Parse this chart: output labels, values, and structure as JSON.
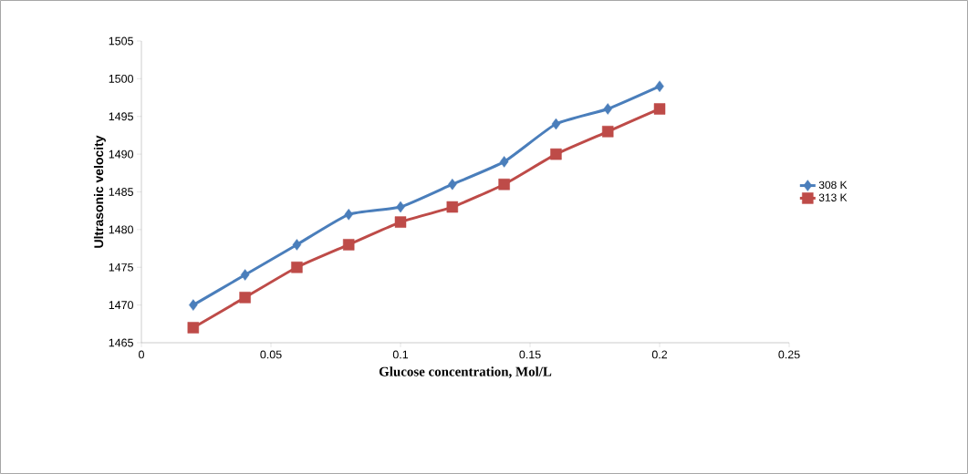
{
  "chart_data": {
    "type": "line",
    "xlabel": "Glucose concentration, Mol/L",
    "ylabel": "Ultrasonic velocity",
    "x": [
      0.02,
      0.04,
      0.06,
      0.08,
      0.1,
      0.12,
      0.14,
      0.16,
      0.18,
      0.2
    ],
    "series": [
      {
        "name": "308 K",
        "color": "#4a7ebb",
        "marker": "diamond",
        "values": [
          1470,
          1474,
          1478,
          1482,
          1483,
          1486,
          1489,
          1494,
          1496,
          1499
        ]
      },
      {
        "name": "313 K",
        "color": "#be4b48",
        "marker": "square",
        "values": [
          1467,
          1471,
          1475,
          1478,
          1481,
          1483,
          1486,
          1490,
          1493,
          1496
        ]
      }
    ],
    "xlim": [
      0,
      0.25
    ],
    "xticks": [
      0,
      0.05,
      0.1,
      0.15,
      0.2,
      0.25
    ],
    "ylim": [
      1465,
      1505
    ],
    "yticks": [
      1465,
      1470,
      1475,
      1480,
      1485,
      1490,
      1495,
      1500,
      1505
    ],
    "grid": false,
    "legend": "right",
    "line_style": "solid"
  }
}
